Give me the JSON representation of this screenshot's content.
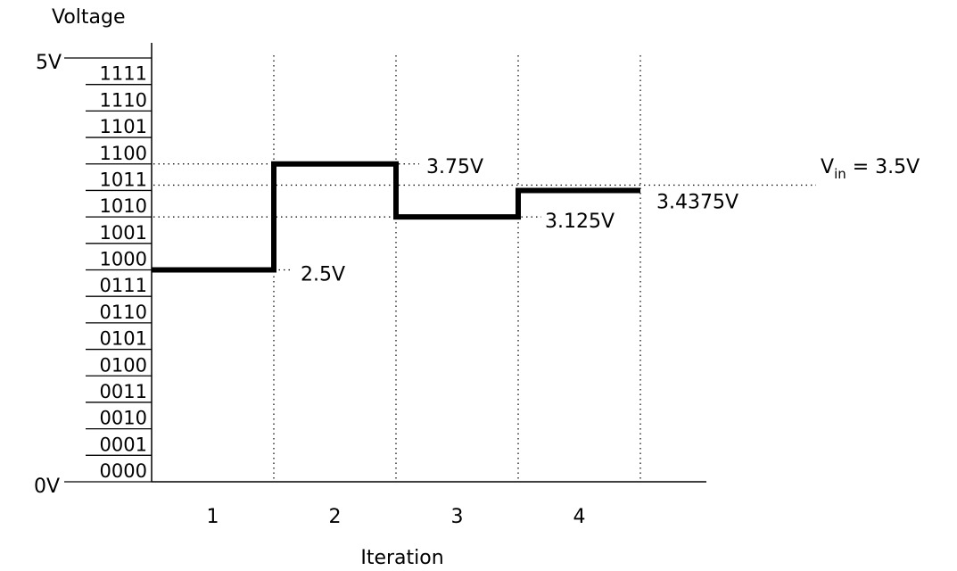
{
  "chart_data": {
    "type": "line",
    "ylabel": "Voltage",
    "xlabel": "Iteration",
    "ylim": [
      0,
      5
    ],
    "y_endpoint_labels": [
      "0V",
      "5V"
    ],
    "codes": [
      "0000",
      "0001",
      "0010",
      "0011",
      "0100",
      "0101",
      "0110",
      "0111",
      "1000",
      "1001",
      "1010",
      "1011",
      "1100",
      "1101",
      "1110",
      "1111"
    ],
    "x_ticks": [
      "1",
      "2",
      "3",
      "4"
    ],
    "steps": [
      {
        "iteration": 1,
        "value": 2.5,
        "label": "2.5V"
      },
      {
        "iteration": 2,
        "value": 3.75,
        "label": "3.75V"
      },
      {
        "iteration": 3,
        "value": 3.125,
        "label": "3.125V"
      },
      {
        "iteration": 4,
        "value": 3.4375,
        "label": "3.4375V"
      }
    ],
    "reference": {
      "value": 3.5,
      "label_main": "V",
      "label_sub": "in",
      "label_rest": " = 3.5V"
    },
    "grid": false
  }
}
